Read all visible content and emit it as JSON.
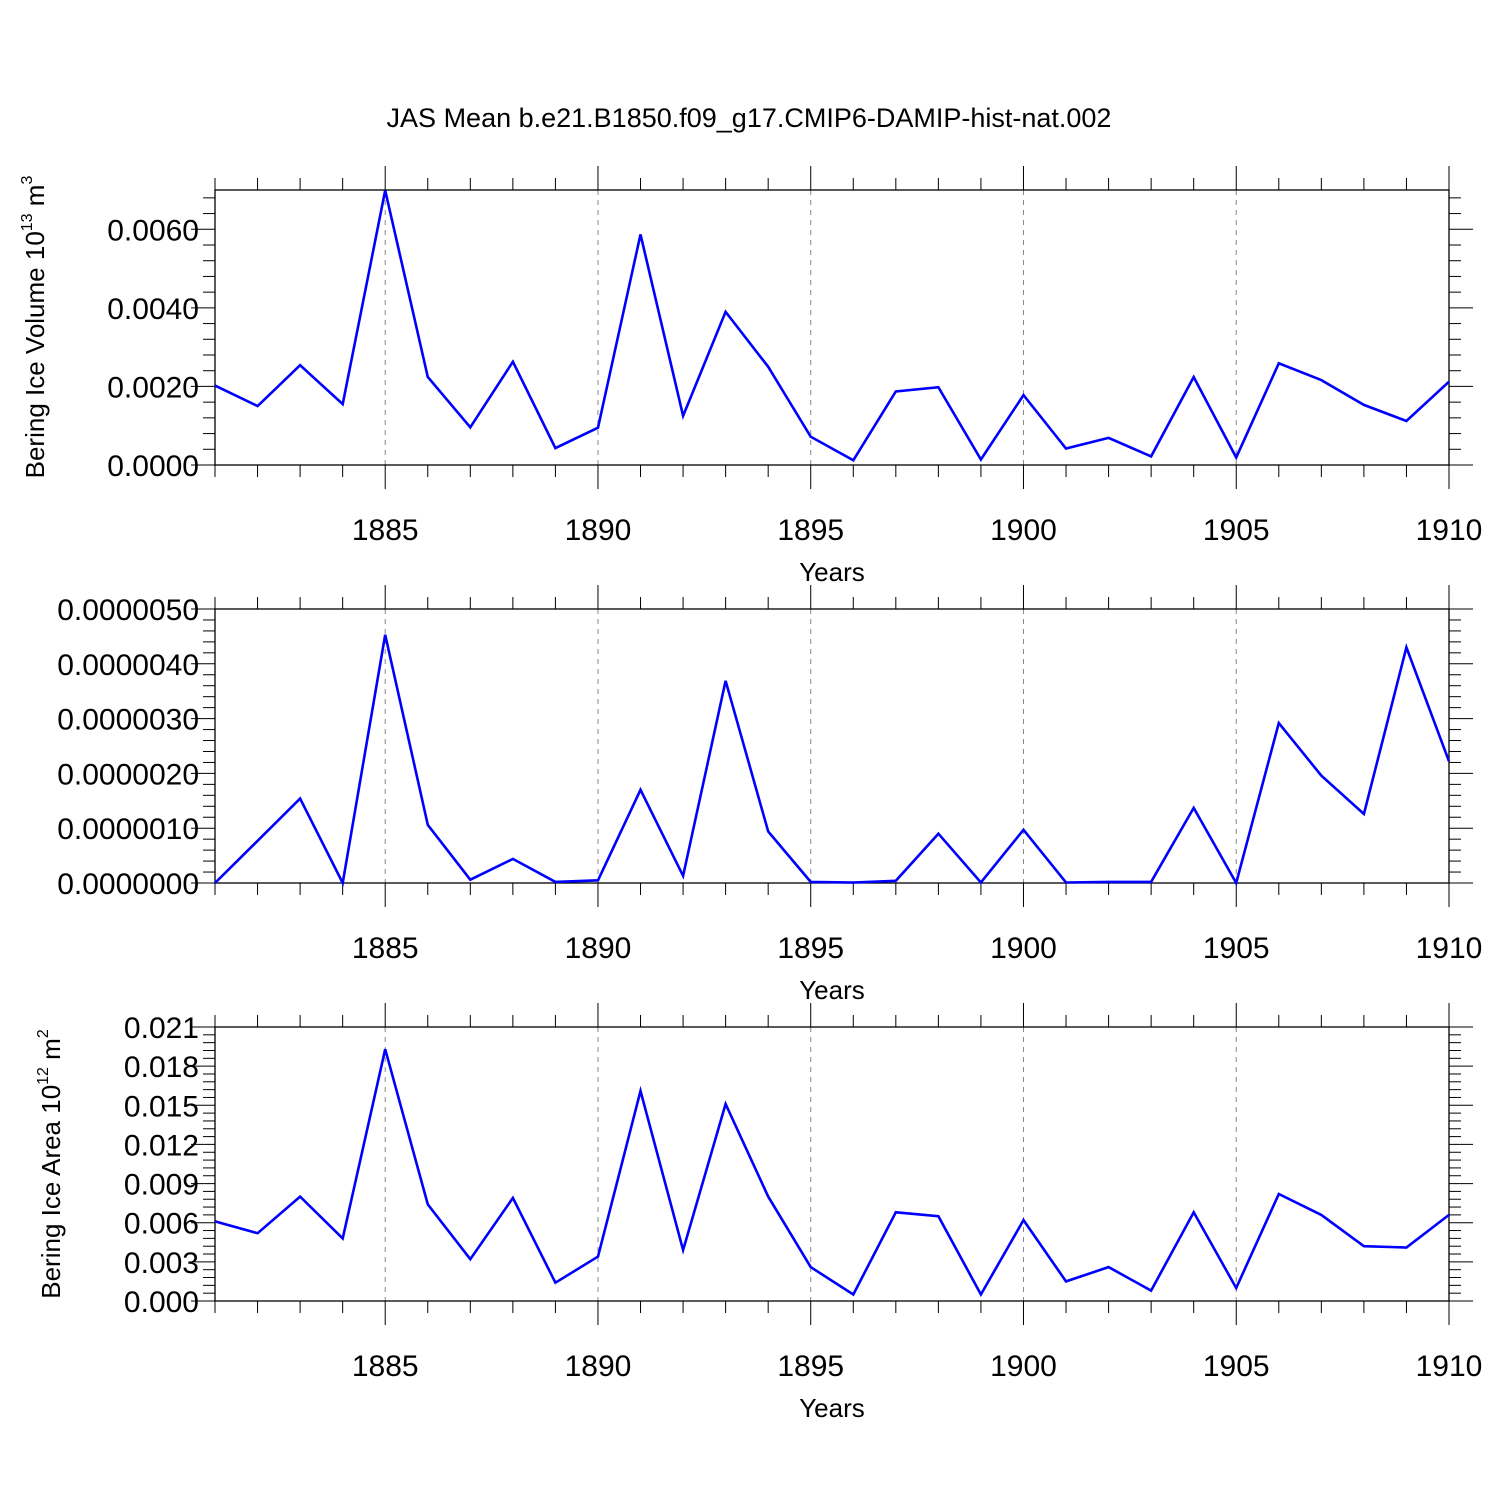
{
  "chart_data": [
    {
      "type": "line",
      "title": "JAS Mean b.e21.B1850.f09_g17.CMIP6-DAMIP-hist-nat.002",
      "xlabel": "Years",
      "ylabel": "Bering Ice Volume 10",
      "ylabel_exp": "13",
      "ylabel_unit": " m",
      "ylabel_unit_exp": "3",
      "xlim": [
        1881,
        1910
      ],
      "ylim": [
        0,
        0.007
      ],
      "x_ticks": [
        1885,
        1890,
        1895,
        1900,
        1905,
        1910
      ],
      "x_tick_labels": [
        "1885",
        "1890",
        "1895",
        "1900",
        "1905",
        "1910"
      ],
      "y_ticks": [
        0,
        0.002,
        0.004,
        0.006
      ],
      "y_tick_labels": [
        "0.0000",
        "0.0020",
        "0.0040",
        "0.0060"
      ],
      "grid": "dashed vertical at major x ticks",
      "color": "#0000ff",
      "x": [
        1881,
        1882,
        1883,
        1884,
        1885,
        1886,
        1887,
        1888,
        1889,
        1890,
        1891,
        1892,
        1893,
        1894,
        1895,
        1896,
        1897,
        1898,
        1899,
        1900,
        1901,
        1902,
        1903,
        1904,
        1905,
        1906,
        1907,
        1908,
        1909,
        1910
      ],
      "values": [
        0.00202,
        0.0015,
        0.00254,
        0.00155,
        0.00699,
        0.00224,
        0.00096,
        0.00263,
        0.00043,
        0.00095,
        0.00587,
        0.00125,
        0.0039,
        0.0025,
        0.00072,
        0.00012,
        0.00187,
        0.00198,
        0.00014,
        0.00178,
        0.00042,
        0.00069,
        0.00022,
        0.00224,
        0.00019,
        0.00259,
        0.00216,
        0.00153,
        0.00112,
        0.00212
      ]
    },
    {
      "type": "line",
      "xlabel": "Years",
      "ylabel": "",
      "xlim": [
        1881,
        1910
      ],
      "ylim": [
        0,
        5e-06
      ],
      "x_ticks": [
        1885,
        1890,
        1895,
        1900,
        1905,
        1910
      ],
      "x_tick_labels": [
        "1885",
        "1890",
        "1895",
        "1900",
        "1905",
        "1910"
      ],
      "y_ticks": [
        0,
        1e-06,
        2e-06,
        3e-06,
        4e-06,
        5e-06
      ],
      "y_tick_labels": [
        "0.0000000",
        "0.0000010",
        "0.0000020",
        "0.0000030",
        "0.0000040",
        "0.0000050"
      ],
      "grid": "dashed vertical at major x ticks",
      "color": "#0000ff",
      "x": [
        1881,
        1882,
        1883,
        1884,
        1885,
        1886,
        1887,
        1888,
        1889,
        1890,
        1891,
        1892,
        1893,
        1894,
        1895,
        1896,
        1897,
        1898,
        1899,
        1900,
        1901,
        1902,
        1903,
        1904,
        1905,
        1906,
        1907,
        1908,
        1909,
        1910
      ],
      "values": [
        0.0,
        7.7e-07,
        1.54e-06,
        0.0,
        4.53e-06,
        1.06e-06,
        6e-08,
        4.4e-07,
        2e-08,
        5e-08,
        1.7e-06,
        1.3e-07,
        3.69e-06,
        9.4e-07,
        2e-08,
        1e-08,
        4e-08,
        9e-07,
        1e-08,
        9.7e-07,
        1e-08,
        2e-08,
        2e-08,
        1.37e-06,
        0.0,
        2.92e-06,
        1.96e-06,
        1.26e-06,
        4.3e-06,
        2.22e-06
      ]
    },
    {
      "type": "line",
      "xlabel": "Years",
      "ylabel": "Bering Ice Area 10",
      "ylabel_exp": "12",
      "ylabel_unit": " m",
      "ylabel_unit_exp": "2",
      "xlim": [
        1881,
        1910
      ],
      "ylim": [
        0,
        0.021
      ],
      "x_ticks": [
        1885,
        1890,
        1895,
        1900,
        1905,
        1910
      ],
      "x_tick_labels": [
        "1885",
        "1890",
        "1895",
        "1900",
        "1905",
        "1910"
      ],
      "y_ticks": [
        0,
        0.003,
        0.006,
        0.009,
        0.012,
        0.015,
        0.018,
        0.021
      ],
      "y_tick_labels": [
        "0.000",
        "0.003",
        "0.006",
        "0.009",
        "0.012",
        "0.015",
        "0.018",
        "0.021"
      ],
      "grid": "dashed vertical at major x ticks",
      "color": "#0000ff",
      "x": [
        1881,
        1882,
        1883,
        1884,
        1885,
        1886,
        1887,
        1888,
        1889,
        1890,
        1891,
        1892,
        1893,
        1894,
        1895,
        1896,
        1897,
        1898,
        1899,
        1900,
        1901,
        1902,
        1903,
        1904,
        1905,
        1906,
        1907,
        1908,
        1909,
        1910
      ],
      "values": [
        0.0061,
        0.0052,
        0.008,
        0.0048,
        0.0193,
        0.0074,
        0.0032,
        0.0079,
        0.0014,
        0.0034,
        0.0161,
        0.0039,
        0.0151,
        0.008,
        0.0026,
        0.0005,
        0.0068,
        0.0065,
        0.0005,
        0.0062,
        0.0015,
        0.0026,
        0.0008,
        0.0068,
        0.001,
        0.0082,
        0.0066,
        0.0042,
        0.0041,
        0.0066
      ]
    }
  ]
}
